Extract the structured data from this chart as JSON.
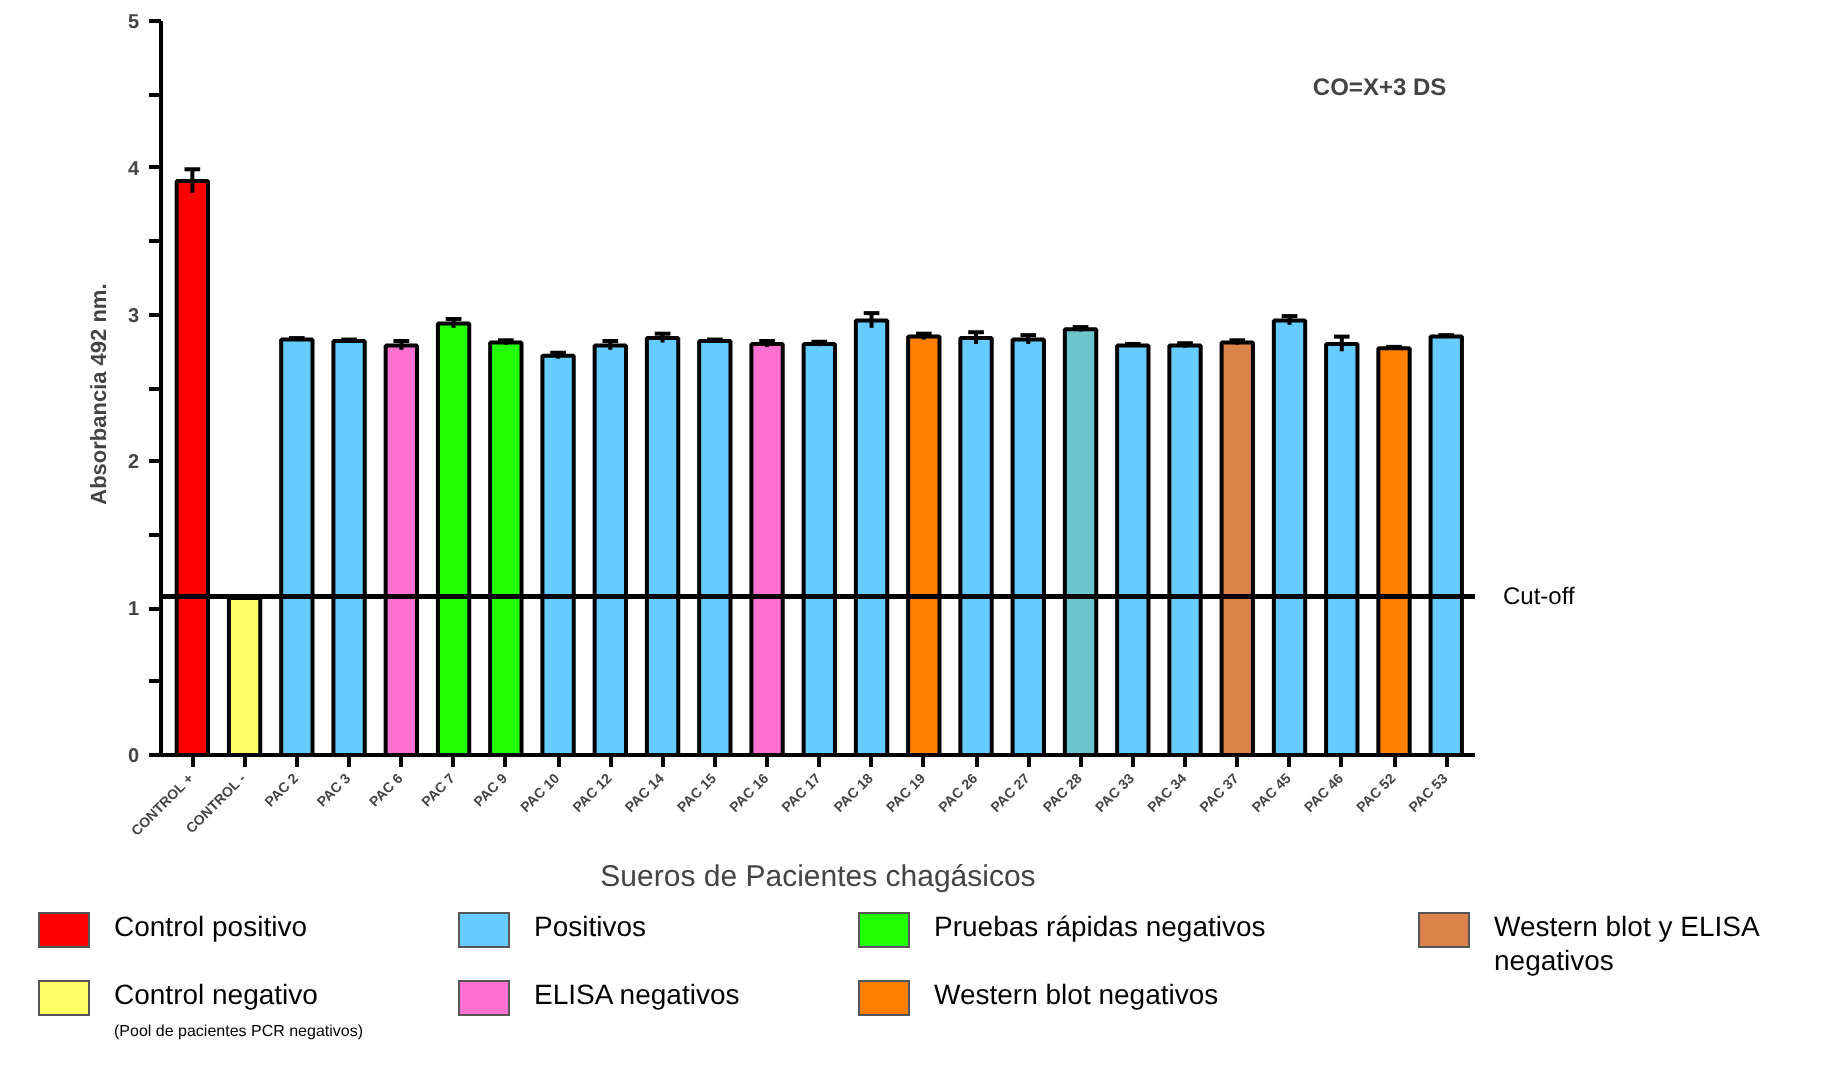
{
  "chart_data": {
    "type": "bar",
    "xlabel": "Sueros de Pacientes chagásicos",
    "ylabel": "Absorbancia   492 nm.",
    "categories": [
      "CONTROL +",
      "CONTROL -",
      "PAC 2",
      "PAC 3",
      "PAC 6",
      "PAC 7",
      "PAC 9",
      "PAC 10",
      "PAC 12",
      "PAC 14",
      "PAC 15",
      "PAC 16",
      "PAC 17",
      "PAC 18",
      "PAC 19",
      "PAC 26",
      "PAC 27",
      "PAC 28",
      "PAC 33",
      "PAC 34",
      "PAC 37",
      "PAC 45",
      "PAC 46",
      "PAC 52",
      "PAC 53"
    ],
    "series": [
      {
        "name": "Control positivo",
        "color": "#ff0000",
        "values": [
          3.91,
          null,
          null,
          null,
          null,
          null,
          null,
          null,
          null,
          null,
          null,
          null,
          null,
          null,
          null,
          null,
          null,
          null,
          null,
          null,
          null,
          null,
          null,
          null,
          null
        ],
        "errors": [
          0.08,
          null,
          null,
          null,
          null,
          null,
          null,
          null,
          null,
          null,
          null,
          null,
          null,
          null,
          null,
          null,
          null,
          null,
          null,
          null,
          null,
          null,
          null,
          null,
          null
        ]
      },
      {
        "name": "Control negativo",
        "color": "#ffff66",
        "values": [
          null,
          1.07,
          null,
          null,
          null,
          null,
          null,
          null,
          null,
          null,
          null,
          null,
          null,
          null,
          null,
          null,
          null,
          null,
          null,
          null,
          null,
          null,
          null,
          null,
          null
        ],
        "errors": [
          null,
          0.01,
          null,
          null,
          null,
          null,
          null,
          null,
          null,
          null,
          null,
          null,
          null,
          null,
          null,
          null,
          null,
          null,
          null,
          null,
          null,
          null,
          null,
          null,
          null
        ]
      },
      {
        "name": "Positivos",
        "color": "#66ccff",
        "values": [
          null,
          null,
          2.83,
          2.82,
          null,
          null,
          null,
          2.72,
          2.79,
          2.84,
          2.82,
          null,
          2.8,
          2.96,
          null,
          2.84,
          2.83,
          null,
          2.79,
          2.79,
          null,
          2.96,
          2.8,
          null,
          2.85
        ],
        "errors": [
          null,
          null,
          0.01,
          0.01,
          null,
          null,
          null,
          0.02,
          0.03,
          0.03,
          0.01,
          null,
          0.015,
          0.05,
          null,
          0.04,
          0.03,
          null,
          0.01,
          0.015,
          null,
          0.03,
          0.05,
          null,
          0.01
        ]
      },
      {
        "name": "ELISA negativos",
        "color": "#ff70d0",
        "values": [
          null,
          null,
          null,
          null,
          2.79,
          null,
          null,
          null,
          null,
          null,
          null,
          2.8,
          null,
          null,
          null,
          null,
          null,
          null,
          null,
          null,
          null,
          null,
          null,
          null,
          null
        ],
        "errors": [
          null,
          null,
          null,
          null,
          0.03,
          null,
          null,
          null,
          null,
          null,
          null,
          0.02,
          null,
          null,
          null,
          null,
          null,
          null,
          null,
          null,
          null,
          null,
          null,
          null,
          null
        ]
      },
      {
        "name": "Pruebas rápidas negativos",
        "color": "#22ff00",
        "values": [
          null,
          null,
          null,
          null,
          null,
          2.94,
          2.81,
          null,
          null,
          null,
          null,
          null,
          null,
          null,
          null,
          null,
          null,
          null,
          null,
          null,
          null,
          null,
          null,
          null,
          null
        ],
        "errors": [
          null,
          null,
          null,
          null,
          null,
          0.03,
          0.015,
          null,
          null,
          null,
          null,
          null,
          null,
          null,
          null,
          null,
          null,
          null,
          null,
          null,
          null,
          null,
          null,
          null,
          null
        ]
      },
      {
        "name": "Western blot negativos",
        "color": "#ff8000",
        "values": [
          null,
          null,
          null,
          null,
          null,
          null,
          null,
          null,
          null,
          null,
          null,
          null,
          null,
          null,
          2.85,
          null,
          null,
          null,
          null,
          null,
          null,
          null,
          null,
          2.77,
          null
        ],
        "errors": [
          null,
          null,
          null,
          null,
          null,
          null,
          null,
          null,
          null,
          null,
          null,
          null,
          null,
          null,
          0.02,
          null,
          null,
          null,
          null,
          null,
          null,
          null,
          null,
          0.01,
          null
        ]
      },
      {
        "name": "Western blot y ELISA negativos",
        "color": "#d9824a",
        "values": [
          null,
          null,
          null,
          null,
          null,
          null,
          null,
          null,
          null,
          null,
          null,
          null,
          null,
          null,
          null,
          null,
          null,
          null,
          null,
          null,
          2.81,
          null,
          null,
          null,
          null
        ],
        "errors": [
          null,
          null,
          null,
          null,
          null,
          null,
          null,
          null,
          null,
          null,
          null,
          null,
          null,
          null,
          null,
          null,
          null,
          null,
          null,
          null,
          0.015,
          null,
          null,
          null,
          null
        ]
      },
      {
        "color": "#6cc5cc",
        "values": [
          null,
          null,
          null,
          null,
          null,
          null,
          null,
          null,
          null,
          null,
          null,
          null,
          null,
          null,
          null,
          null,
          null,
          2.9,
          null,
          null,
          null,
          null,
          null,
          null,
          null
        ],
        "errors": [
          null,
          null,
          null,
          null,
          null,
          null,
          null,
          null,
          null,
          null,
          null,
          null,
          null,
          null,
          null,
          null,
          null,
          0.015,
          null,
          null,
          null,
          null,
          null,
          null,
          null
        ]
      }
    ],
    "ylim": [
      0,
      5
    ],
    "yticks": [
      0,
      {
        "value": 0.5,
        "label": null
      },
      1,
      {
        "value": 1.5,
        "label": null
      },
      2,
      {
        "value": 2.5,
        "label": null
      },
      3,
      {
        "value": 3.5,
        "label": null
      },
      4,
      {
        "value": 4.5,
        "label": null
      },
      5
    ],
    "ref_lines": [
      {
        "axis": "y",
        "value": 1.08,
        "label": "Cut-off"
      }
    ],
    "annotations": [
      "CO=X+3 DS",
      "(Pool de pacientes  PCR negativos)"
    ],
    "grid": false,
    "legend": "bottom"
  }
}
